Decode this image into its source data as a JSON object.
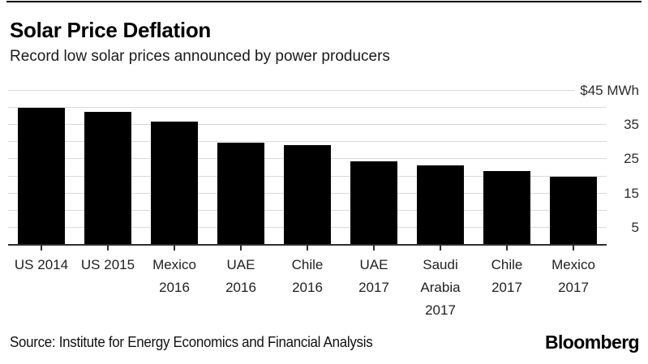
{
  "header": {
    "title": "Solar Price Deflation",
    "subtitle": "Record low solar prices announced by power producers"
  },
  "footer": {
    "source": "Source: Institute for Energy Economics and Financial Analysis",
    "brand": "Bloomberg"
  },
  "colors": {
    "bar": "#000000",
    "gridline": "#d9d9d9",
    "axis": "#2e2e2e",
    "text": "#1a1a1a"
  },
  "chart_data": {
    "type": "bar",
    "title": "Solar Price Deflation",
    "subtitle": "Record low solar prices announced by power producers",
    "categories": [
      "US 2014",
      "US 2015",
      "Mexico 2016",
      "UAE 2016",
      "Chile 2016",
      "UAE 2017",
      "Saudi Arabia 2017",
      "Chile 2017",
      "Mexico 2017"
    ],
    "category_label_lines": [
      [
        "US 2014"
      ],
      [
        "US 2015"
      ],
      [
        "Mexico",
        "2016"
      ],
      [
        "UAE",
        "2016"
      ],
      [
        "Chile",
        "2016"
      ],
      [
        "UAE",
        "2017"
      ],
      [
        "Saudi",
        "Arabia",
        "2017"
      ],
      [
        "Chile",
        "2017"
      ],
      [
        "Mexico",
        "2017"
      ]
    ],
    "values": [
      40.1,
      38.9,
      35.9,
      29.9,
      29.1,
      24.4,
      23.3,
      21.5,
      19.8
    ],
    "xlabel": "",
    "ylabel": "$ per MWh",
    "ylim": [
      0,
      45
    ],
    "gridline_step": 5,
    "y_axis_labels": [
      {
        "value": 45,
        "label": "$45 MWh"
      },
      {
        "value": 35,
        "label": "35"
      },
      {
        "value": 25,
        "label": "25"
      },
      {
        "value": 15,
        "label": "15"
      },
      {
        "value": 5,
        "label": "5"
      }
    ],
    "grid": true,
    "legend": false,
    "bar_color": "#000000"
  }
}
